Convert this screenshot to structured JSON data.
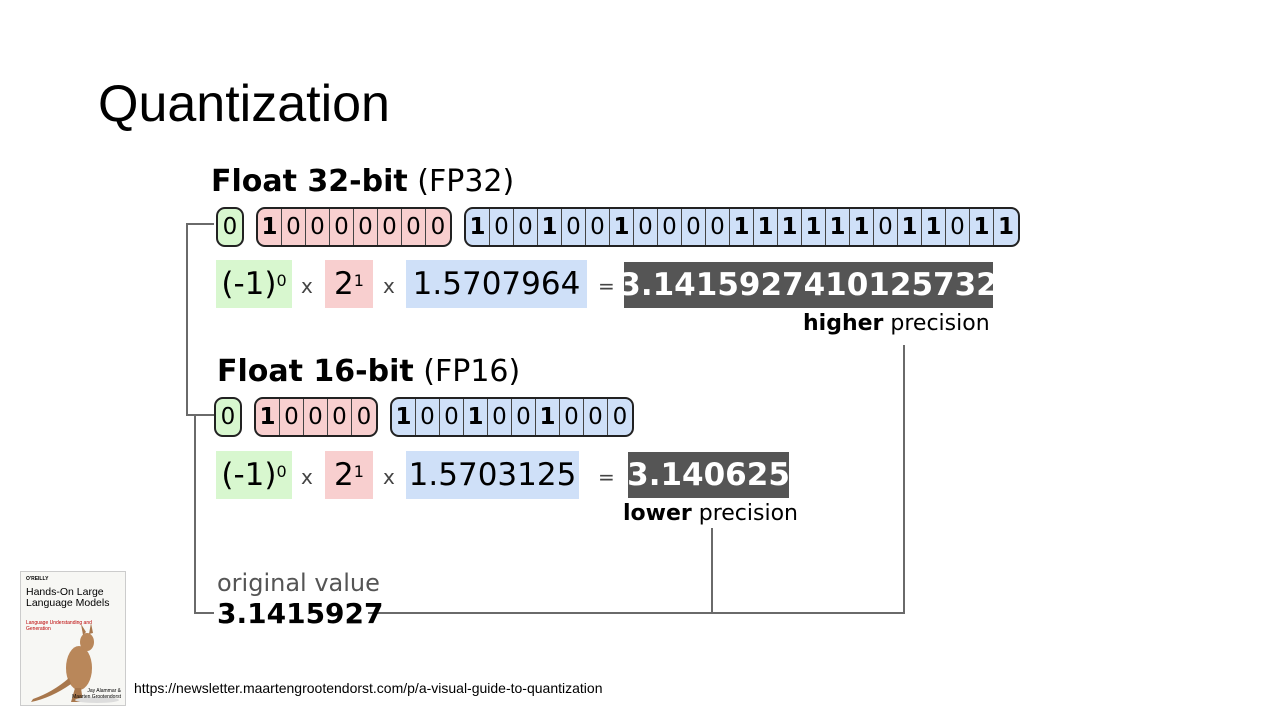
{
  "slide": {
    "title": "Quantization"
  },
  "fp32": {
    "heading_bold": "Float 32-bit",
    "heading_light": "(FP32)",
    "sign_bits": [
      "0"
    ],
    "exponent_bits": [
      "1",
      "0",
      "0",
      "0",
      "0",
      "0",
      "0",
      "0"
    ],
    "mantissa_bits": [
      "1",
      "0",
      "0",
      "1",
      "0",
      "0",
      "1",
      "0",
      "0",
      "0",
      "0",
      "1",
      "1",
      "1",
      "1",
      "1",
      "1",
      "0",
      "1",
      "1",
      "0",
      "1",
      "1"
    ],
    "formula": {
      "sign_base": "(-1)",
      "sign_exp": "0",
      "times": "x",
      "exp_base": "2",
      "exp_exp": "1",
      "mantissa": "1.5707964",
      "equals": "=",
      "result": "3.1415927410125732"
    },
    "precision_bold": "higher",
    "precision_light": "precision"
  },
  "fp16": {
    "heading_bold": "Float 16-bit",
    "heading_light": "(FP16)",
    "sign_bits": [
      "0"
    ],
    "exponent_bits": [
      "1",
      "0",
      "0",
      "0",
      "0"
    ],
    "mantissa_bits": [
      "1",
      "0",
      "0",
      "1",
      "0",
      "0",
      "1",
      "0",
      "0",
      "0"
    ],
    "formula": {
      "sign_base": "(-1)",
      "sign_exp": "0",
      "times": "x",
      "exp_base": "2",
      "exp_exp": "1",
      "mantissa": "1.5703125",
      "equals": "=",
      "result": "3.140625"
    },
    "precision_bold": "lower",
    "precision_light": "precision"
  },
  "original": {
    "label": "original value",
    "value": "3.1415927"
  },
  "book": {
    "publisher": "O'REILLY",
    "title": "Hands-On Large Language Models",
    "subtitle": "Language Understanding and Generation",
    "authors": "Jay Alammar & Maarten Grootendorst"
  },
  "source_url": "https://newsletter.maartengrootendorst.com/p/a-visual-guide-to-quantization",
  "colors": {
    "sign": "#d8f7cf",
    "exponent": "#f8cfcf",
    "mantissa": "#cfe0f8",
    "result_bg": "#555555",
    "connector": "#6a6a6a"
  }
}
